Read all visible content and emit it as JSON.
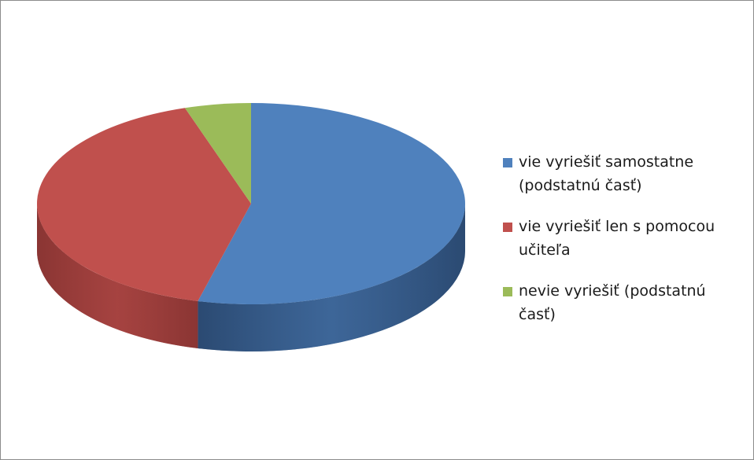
{
  "chart_data": {
    "type": "pie",
    "categories": [
      "vie vyriešiť samostatne (podstatnú časť)",
      "vie vyriešiť len s pomocou učiteľa",
      "nevie vyriešiť (podstatnú časť)"
    ],
    "values": [
      54,
      41,
      5
    ],
    "colors": [
      "#4f81bd",
      "#c0504d",
      "#9bbb59"
    ],
    "side_colors": [
      "#2b4a72",
      "#8a3533",
      "#6c8a3a"
    ],
    "legend": "right"
  }
}
